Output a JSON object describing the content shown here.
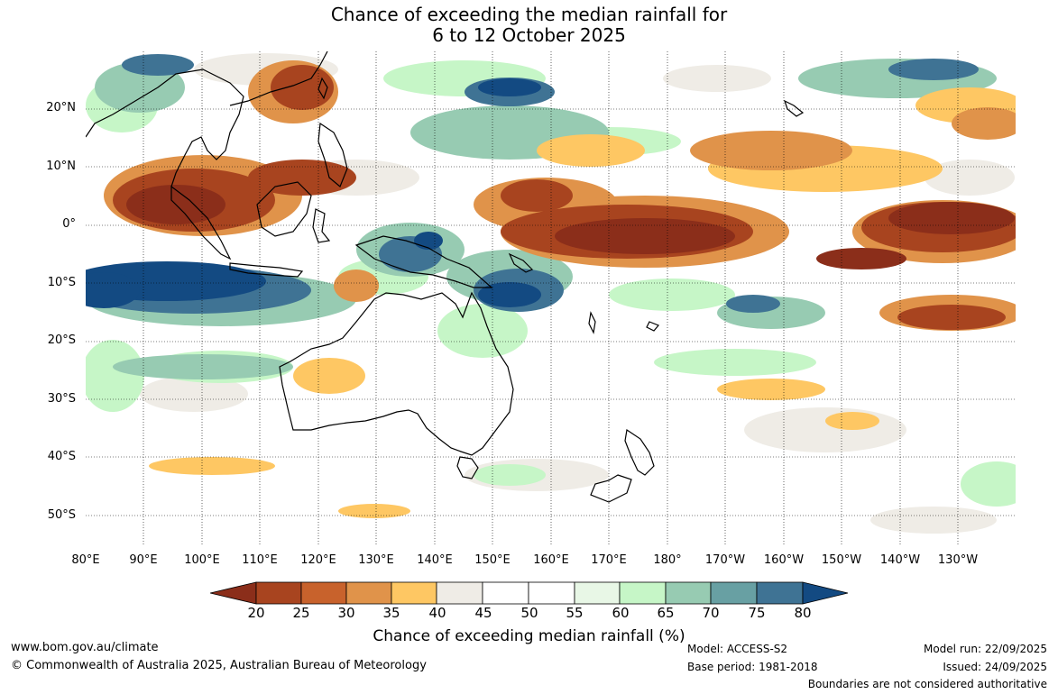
{
  "title": {
    "line1": "Chance of exceeding the median rainfall for",
    "line2": "6 to 12 October 2025"
  },
  "lat_labels": [
    "20°N",
    "10°N",
    "0°",
    "10°S",
    "20°S",
    "30°S",
    "40°S",
    "50°S"
  ],
  "lon_labels": [
    "80°E",
    "90°E",
    "100°E",
    "110°E",
    "120°E",
    "130°E",
    "140°E",
    "150°E",
    "160°E",
    "170°E",
    "180°",
    "170°W",
    "160°W",
    "150°W",
    "140°W",
    "130°W"
  ],
  "colorbar": {
    "ticks": [
      "20",
      "25",
      "30",
      "35",
      "40",
      "45",
      "50",
      "55",
      "60",
      "65",
      "70",
      "75",
      "80"
    ],
    "colors": [
      "#8b2e1a",
      "#a8441f",
      "#c8622c",
      "#e0934a",
      "#fec763",
      "#efece6",
      "#ffffff",
      "#ffffff",
      "#e8f7e6",
      "#c6f6c7",
      "#97cbb2",
      "#68a0a3",
      "#3f7394",
      "#134a82"
    ],
    "title": "Chance of exceeding median rainfall (%)"
  },
  "footer": {
    "website": "www.bom.gov.au/climate",
    "copyright": "© Commonwealth of Australia 2025, Australian Bureau of Meteorology",
    "model": "Model: ACCESS-S2",
    "base_period": "Base period: 1981-2018",
    "model_run": "Model run: 22/09/2025",
    "issued": "Issued: 24/09/2025",
    "disclaimer": "Boundaries are not considered authoritative"
  }
}
